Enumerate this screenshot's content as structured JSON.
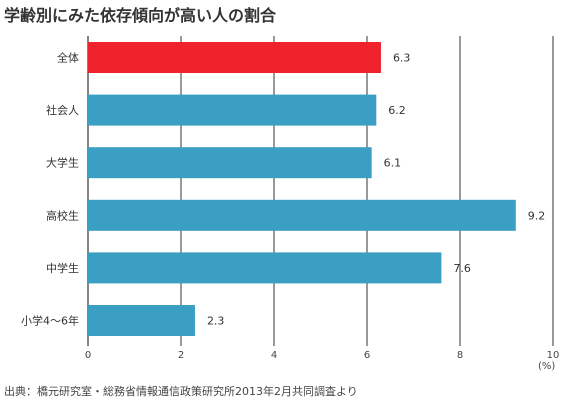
{
  "chart_data": {
    "type": "bar",
    "orientation": "horizontal",
    "title": "学齢別にみた依存傾向が高い人の割合",
    "categories": [
      "全体",
      "社会人",
      "大学生",
      "高校生",
      "中学生",
      "小学4〜6年"
    ],
    "values": [
      6.3,
      6.2,
      6.1,
      9.2,
      7.6,
      2.3
    ],
    "value_labels": [
      "6.3",
      "6.2",
      "6.1",
      "9.2",
      "7.6",
      "2.3"
    ],
    "xlim": [
      0,
      10
    ],
    "xticks": [
      "0",
      "2",
      "4",
      "6",
      "8",
      "10"
    ],
    "xlabel": "",
    "ylabel": "",
    "unit": "(%)",
    "grid": true,
    "highlight_category": "全体",
    "colors": {
      "highlight": "#f0222c",
      "bar": "#3b9ec3",
      "grid": "#333333"
    }
  },
  "source": "出典：橋元研究室・総務省情報通信政策研究所2013年2月共同調査より"
}
